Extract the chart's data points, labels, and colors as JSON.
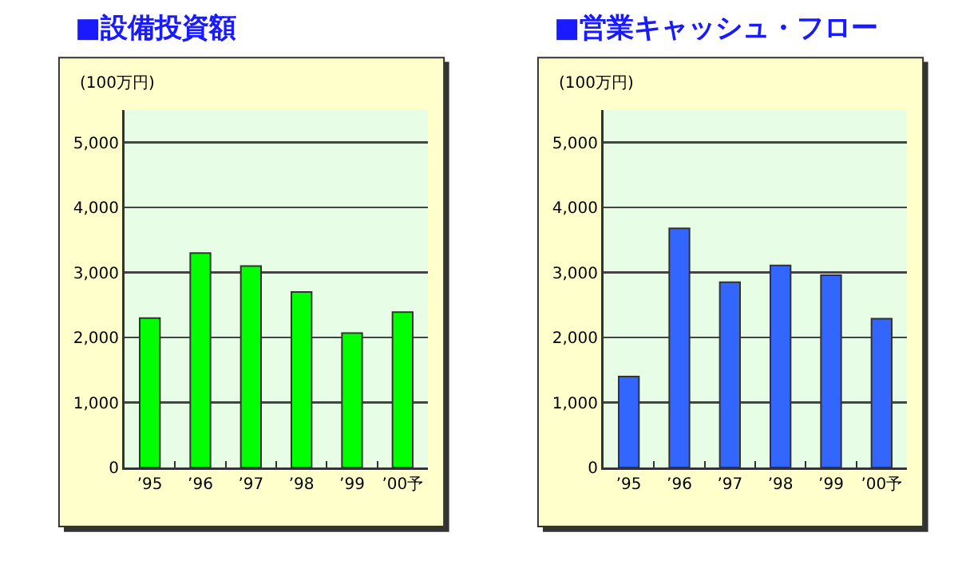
{
  "chart_data": [
    {
      "type": "bar",
      "title": "■設備投資額",
      "ylabel": "(100万円)",
      "categories": [
        "’95",
        "’96",
        "’97",
        "’98",
        "’99",
        "’00予"
      ],
      "series": [
        {
          "color": "#00ff00",
          "values": [
            2300,
            3300,
            3100,
            2700,
            2070,
            2390
          ]
        }
      ],
      "ylim": [
        0,
        5500
      ],
      "yticks": [
        {
          "value": 0,
          "label": "0"
        },
        {
          "value": 1000,
          "label": "1,000"
        },
        {
          "value": 2000,
          "label": "2,000"
        },
        {
          "value": 3000,
          "label": "3,000"
        },
        {
          "value": 4000,
          "label": "4,000"
        },
        {
          "value": 5000,
          "label": "5,000"
        }
      ],
      "grid": "y"
    },
    {
      "type": "bar",
      "title": "■営業キャッシュ・フロー",
      "ylabel": "(100万円)",
      "categories": [
        "’95",
        "’96",
        "’97",
        "’98",
        "’99",
        "’00予"
      ],
      "series": [
        {
          "color": "#3366ff",
          "values": [
            1400,
            3680,
            2850,
            3110,
            2960,
            2290
          ]
        }
      ],
      "ylim": [
        0,
        5500
      ],
      "yticks": [
        {
          "value": 0,
          "label": "0"
        },
        {
          "value": 1000,
          "label": "1,000"
        },
        {
          "value": 2000,
          "label": "2,000"
        },
        {
          "value": 3000,
          "label": "3,000"
        },
        {
          "value": 4000,
          "label": "4,000"
        },
        {
          "value": 5000,
          "label": "5,000"
        }
      ],
      "grid": "y"
    }
  ]
}
